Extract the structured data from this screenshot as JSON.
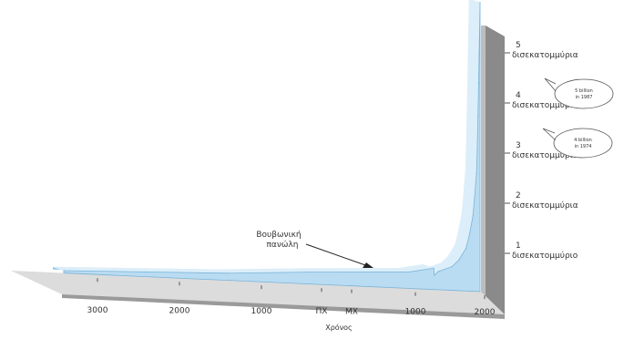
{
  "chart_data": {
    "type": "area",
    "x_ticks": [
      "3000",
      "2000",
      "1000",
      "ΠΧ",
      "ΜΧ",
      "1000",
      "2000"
    ],
    "xlabel": "Χρόνος",
    "y_ticks": [
      {
        "value": 1,
        "number": "1",
        "label": "δισεκατομμύριο"
      },
      {
        "value": 2,
        "number": "2",
        "label": "δισεκατομμύρια"
      },
      {
        "value": 3,
        "number": "3",
        "label": "δισεκατομμύρια"
      },
      {
        "value": 4,
        "number": "4",
        "label": "δισεκατομμύρια"
      },
      {
        "value": 5,
        "number": "5",
        "label": "δισεκατομμύρια"
      }
    ],
    "ylim": [
      0,
      5.5
    ],
    "series": [
      {
        "x": [
          -3000,
          -2000,
          -1000,
          0,
          1000,
          1340,
          1350,
          1400,
          1600,
          1700,
          1800,
          1850,
          1900,
          1950,
          1960,
          1970,
          1980,
          1987,
          2000
        ],
        "values": [
          0.05,
          0.1,
          0.15,
          0.25,
          0.35,
          0.45,
          0.3,
          0.38,
          0.5,
          0.65,
          0.9,
          1.2,
          1.6,
          2.5,
          3.0,
          3.7,
          4.4,
          5.0,
          6.1
        ]
      }
    ],
    "annotations": [
      {
        "text_line1": "Βουβωνική",
        "text_line2": "πανώλη"
      }
    ],
    "callouts": [
      {
        "line1": "5 billion",
        "line2": "in 1987"
      },
      {
        "line1": "4 billion",
        "line2": "in 1974"
      }
    ],
    "colors": {
      "area_fill": "#b9dcf2",
      "area_edge": "#8cc4e8",
      "area_top": "#dceef9",
      "back_wall": "#bdbdbd",
      "back_wall_side": "#8a8a8a",
      "floor": "#dcdcdc",
      "floor_edge": "#9a9a9a"
    }
  }
}
